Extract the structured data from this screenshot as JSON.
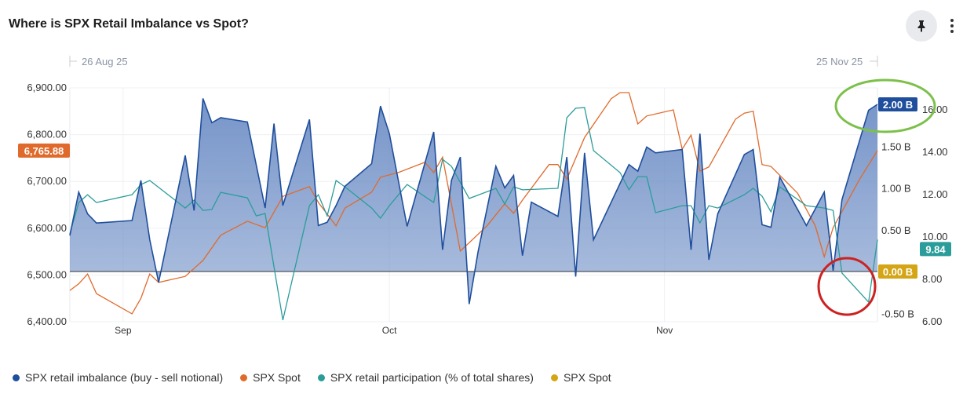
{
  "header": {
    "title": "Where is SPX Retail Imbalance vs Spot?",
    "pin_icon": "pin-icon",
    "more_icon": "more-vertical-icon"
  },
  "navigator": {
    "start_label": "26 Aug 25",
    "end_label": "25 Nov 25"
  },
  "colors": {
    "imbalance": "#1f4e9c",
    "imbalance_fill": "#6f8fc6",
    "spot": "#e06a2c",
    "participation": "#2a9d9a",
    "spot2": "#d4a514",
    "annotation_green": "#7cc04a",
    "annotation_red": "#cc2222"
  },
  "chart_data": {
    "type": "line",
    "title": "Where is SPX Retail Imbalance vs Spot?",
    "x_range": [
      "2025-08-26",
      "2025-11-25"
    ],
    "x_ticks": [
      {
        "date": "2025-09-01",
        "label": "Sep"
      },
      {
        "date": "2025-10-01",
        "label": "Oct"
      },
      {
        "date": "2025-11-01",
        "label": "Nov"
      }
    ],
    "axes": {
      "left": {
        "range": [
          6400,
          6900
        ],
        "ticks": [
          "6,400.00",
          "6,500.00",
          "6,600.00",
          "6,700.00",
          "6,800.00",
          "6,900.00"
        ],
        "tick_values": [
          6400,
          6500,
          6600,
          6700,
          6800,
          6900
        ]
      },
      "middle": {
        "range": [
          -0.6,
          2.1
        ],
        "ticks": [
          "-0.50 B",
          "0.00 B",
          "0.50 B",
          "1.00 B",
          "1.50 B",
          "2.00 B"
        ],
        "tick_values": [
          -0.5,
          0,
          0.5,
          1,
          1.5,
          2
        ]
      },
      "right": {
        "range": [
          6,
          16.5
        ],
        "ticks": [
          "6.00",
          "8.00",
          "10.00",
          "12.00",
          "14.00",
          "16.00"
        ],
        "tick_values": [
          6,
          8,
          10,
          12,
          14,
          16
        ]
      }
    },
    "grid": true,
    "legend_position": "bottom-left",
    "series": [
      {
        "name": "SPX retail imbalance (buy - sell notional)",
        "axis": "middle",
        "style": "area",
        "color": "#1f4e9c",
        "last_label": "2.00 B",
        "points": [
          [
            "2025-08-26",
            0.43
          ],
          [
            "2025-08-27",
            0.95
          ],
          [
            "2025-08-28",
            0.69
          ],
          [
            "2025-08-29",
            0.58
          ],
          [
            "2025-09-02",
            0.61
          ],
          [
            "2025-09-03",
            1.09
          ],
          [
            "2025-09-04",
            0.38
          ],
          [
            "2025-09-05",
            -0.13
          ],
          [
            "2025-09-08",
            1.39
          ],
          [
            "2025-09-09",
            0.73
          ],
          [
            "2025-09-10",
            2.07
          ],
          [
            "2025-09-11",
            1.78
          ],
          [
            "2025-09-12",
            1.84
          ],
          [
            "2025-09-15",
            1.79
          ],
          [
            "2025-09-17",
            0.76
          ],
          [
            "2025-09-18",
            1.77
          ],
          [
            "2025-09-19",
            0.79
          ],
          [
            "2025-09-22",
            1.82
          ],
          [
            "2025-09-23",
            0.55
          ],
          [
            "2025-09-24",
            0.59
          ],
          [
            "2025-09-25",
            0.79
          ],
          [
            "2025-09-26",
            1.02
          ],
          [
            "2025-09-29",
            1.29
          ],
          [
            "2025-09-30",
            1.98
          ],
          [
            "2025-10-01",
            1.65
          ],
          [
            "2025-10-03",
            0.54
          ],
          [
            "2025-10-06",
            1.67
          ],
          [
            "2025-10-07",
            0.26
          ],
          [
            "2025-10-08",
            1.09
          ],
          [
            "2025-10-09",
            1.37
          ],
          [
            "2025-10-10",
            -0.39
          ],
          [
            "2025-10-11",
            0.24
          ],
          [
            "2025-10-13",
            1.26
          ],
          [
            "2025-10-14",
            1.0
          ],
          [
            "2025-10-15",
            1.15
          ],
          [
            "2025-10-16",
            0.19
          ],
          [
            "2025-10-17",
            0.83
          ],
          [
            "2025-10-20",
            0.66
          ],
          [
            "2025-10-21",
            1.37
          ],
          [
            "2025-10-22",
            -0.06
          ],
          [
            "2025-10-23",
            1.42
          ],
          [
            "2025-10-24",
            0.38
          ],
          [
            "2025-10-28",
            1.28
          ],
          [
            "2025-10-29",
            1.2
          ],
          [
            "2025-10-30",
            1.49
          ],
          [
            "2025-10-31",
            1.42
          ],
          [
            "2025-11-03",
            1.46
          ],
          [
            "2025-11-04",
            0.26
          ],
          [
            "2025-11-05",
            1.65
          ],
          [
            "2025-11-06",
            0.14
          ],
          [
            "2025-11-07",
            0.69
          ],
          [
            "2025-11-10",
            1.4
          ],
          [
            "2025-11-11",
            1.46
          ],
          [
            "2025-11-12",
            0.56
          ],
          [
            "2025-11-13",
            0.53
          ],
          [
            "2025-11-14",
            1.13
          ],
          [
            "2025-11-17",
            0.55
          ],
          [
            "2025-11-19",
            0.95
          ],
          [
            "2025-11-20",
            0.01
          ],
          [
            "2025-11-21",
            0.86
          ],
          [
            "2025-11-24",
            1.93
          ],
          [
            "2025-11-25",
            2.0
          ]
        ]
      },
      {
        "name": "SPX Spot",
        "axis": "left",
        "style": "line",
        "color": "#e06a2c",
        "last_label": "6,765.88",
        "points": [
          [
            "2025-08-26",
            6467
          ],
          [
            "2025-08-27",
            6481
          ],
          [
            "2025-08-28",
            6502
          ],
          [
            "2025-08-29",
            6460
          ],
          [
            "2025-09-02",
            6417
          ],
          [
            "2025-09-03",
            6450
          ],
          [
            "2025-09-04",
            6502
          ],
          [
            "2025-09-05",
            6484
          ],
          [
            "2025-09-08",
            6497
          ],
          [
            "2025-09-10",
            6531
          ],
          [
            "2025-09-12",
            6585
          ],
          [
            "2025-09-15",
            6615
          ],
          [
            "2025-09-17",
            6601
          ],
          [
            "2025-09-19",
            6668
          ],
          [
            "2025-09-22",
            6689
          ],
          [
            "2025-09-23",
            6655
          ],
          [
            "2025-09-25",
            6605
          ],
          [
            "2025-09-26",
            6643
          ],
          [
            "2025-09-29",
            6677
          ],
          [
            "2025-09-30",
            6709
          ],
          [
            "2025-10-02",
            6719
          ],
          [
            "2025-10-05",
            6741
          ],
          [
            "2025-10-06",
            6719
          ],
          [
            "2025-10-07",
            6752
          ],
          [
            "2025-10-09",
            6551
          ],
          [
            "2025-10-12",
            6605
          ],
          [
            "2025-10-14",
            6652
          ],
          [
            "2025-10-15",
            6632
          ],
          [
            "2025-10-16",
            6660
          ],
          [
            "2025-10-19",
            6736
          ],
          [
            "2025-10-20",
            6736
          ],
          [
            "2025-10-21",
            6705
          ],
          [
            "2025-10-23",
            6794
          ],
          [
            "2025-10-26",
            6877
          ],
          [
            "2025-10-27",
            6890
          ],
          [
            "2025-10-28",
            6890
          ],
          [
            "2025-10-29",
            6823
          ],
          [
            "2025-10-30",
            6840
          ],
          [
            "2025-11-02",
            6853
          ],
          [
            "2025-11-03",
            6769
          ],
          [
            "2025-11-04",
            6799
          ],
          [
            "2025-11-05",
            6722
          ],
          [
            "2025-11-06",
            6731
          ],
          [
            "2025-11-09",
            6833
          ],
          [
            "2025-11-10",
            6846
          ],
          [
            "2025-11-11",
            6850
          ],
          [
            "2025-11-12",
            6736
          ],
          [
            "2025-11-13",
            6732
          ],
          [
            "2025-11-16",
            6675
          ],
          [
            "2025-11-18",
            6605
          ],
          [
            "2025-11-19",
            6539
          ],
          [
            "2025-11-20",
            6601
          ],
          [
            "2025-11-23",
            6705
          ],
          [
            "2025-11-25",
            6765.88
          ]
        ]
      },
      {
        "name": "SPX retail participation (% of total shares)",
        "axis": "right",
        "style": "line",
        "color": "#2a9d9a",
        "last_label": "9.84",
        "points": [
          [
            "2025-08-26",
            10.11
          ],
          [
            "2025-08-27",
            11.59
          ],
          [
            "2025-08-28",
            11.96
          ],
          [
            "2025-08-29",
            11.59
          ],
          [
            "2025-09-02",
            11.96
          ],
          [
            "2025-09-03",
            12.44
          ],
          [
            "2025-09-04",
            12.63
          ],
          [
            "2025-09-08",
            11.33
          ],
          [
            "2025-09-09",
            11.7
          ],
          [
            "2025-09-10",
            11.22
          ],
          [
            "2025-09-11",
            11.26
          ],
          [
            "2025-09-12",
            12.07
          ],
          [
            "2025-09-15",
            11.81
          ],
          [
            "2025-09-16",
            10.96
          ],
          [
            "2025-09-17",
            11.07
          ],
          [
            "2025-09-19",
            6.04
          ],
          [
            "2025-09-22",
            11.44
          ],
          [
            "2025-09-23",
            11.96
          ],
          [
            "2025-09-24",
            10.96
          ],
          [
            "2025-09-25",
            12.63
          ],
          [
            "2025-09-26",
            12.33
          ],
          [
            "2025-09-29",
            11.33
          ],
          [
            "2025-09-30",
            10.85
          ],
          [
            "2025-10-01",
            11.44
          ],
          [
            "2025-10-03",
            12.44
          ],
          [
            "2025-10-06",
            11.59
          ],
          [
            "2025-10-07",
            13.63
          ],
          [
            "2025-10-08",
            13.3
          ],
          [
            "2025-10-10",
            11.78
          ],
          [
            "2025-10-13",
            12.26
          ],
          [
            "2025-10-14",
            11.52
          ],
          [
            "2025-10-15",
            12.33
          ],
          [
            "2025-10-16",
            12.19
          ],
          [
            "2025-10-20",
            12.26
          ],
          [
            "2025-10-21",
            15.59
          ],
          [
            "2025-10-22",
            16.04
          ],
          [
            "2025-10-23",
            16.07
          ],
          [
            "2025-10-24",
            14.04
          ],
          [
            "2025-10-27",
            13.0
          ],
          [
            "2025-10-28",
            12.19
          ],
          [
            "2025-10-29",
            12.81
          ],
          [
            "2025-10-30",
            12.81
          ],
          [
            "2025-10-31",
            11.11
          ],
          [
            "2025-11-03",
            11.44
          ],
          [
            "2025-11-04",
            11.44
          ],
          [
            "2025-11-05",
            10.63
          ],
          [
            "2025-11-06",
            11.44
          ],
          [
            "2025-11-07",
            11.33
          ],
          [
            "2025-11-10",
            11.96
          ],
          [
            "2025-11-11",
            12.26
          ],
          [
            "2025-11-12",
            11.89
          ],
          [
            "2025-11-13",
            11.15
          ],
          [
            "2025-11-14",
            12.33
          ],
          [
            "2025-11-17",
            11.44
          ],
          [
            "2025-11-19",
            11.33
          ],
          [
            "2025-11-20",
            11.22
          ],
          [
            "2025-11-21",
            8.26
          ],
          [
            "2025-11-24",
            6.89
          ],
          [
            "2025-11-25",
            9.84
          ]
        ]
      },
      {
        "name": "SPX Spot",
        "axis": "middle",
        "style": "baseline",
        "color": "#d4a514",
        "last_label": "0.00 B",
        "value": 0
      }
    ]
  },
  "legend": [
    {
      "label": "SPX retail imbalance (buy - sell notional)",
      "color": "#1f4e9c"
    },
    {
      "label": "SPX Spot",
      "color": "#e06a2c"
    },
    {
      "label": "SPX retail participation (% of total shares)",
      "color": "#2a9d9a"
    },
    {
      "label": "SPX Spot",
      "color": "#d4a514"
    }
  ]
}
